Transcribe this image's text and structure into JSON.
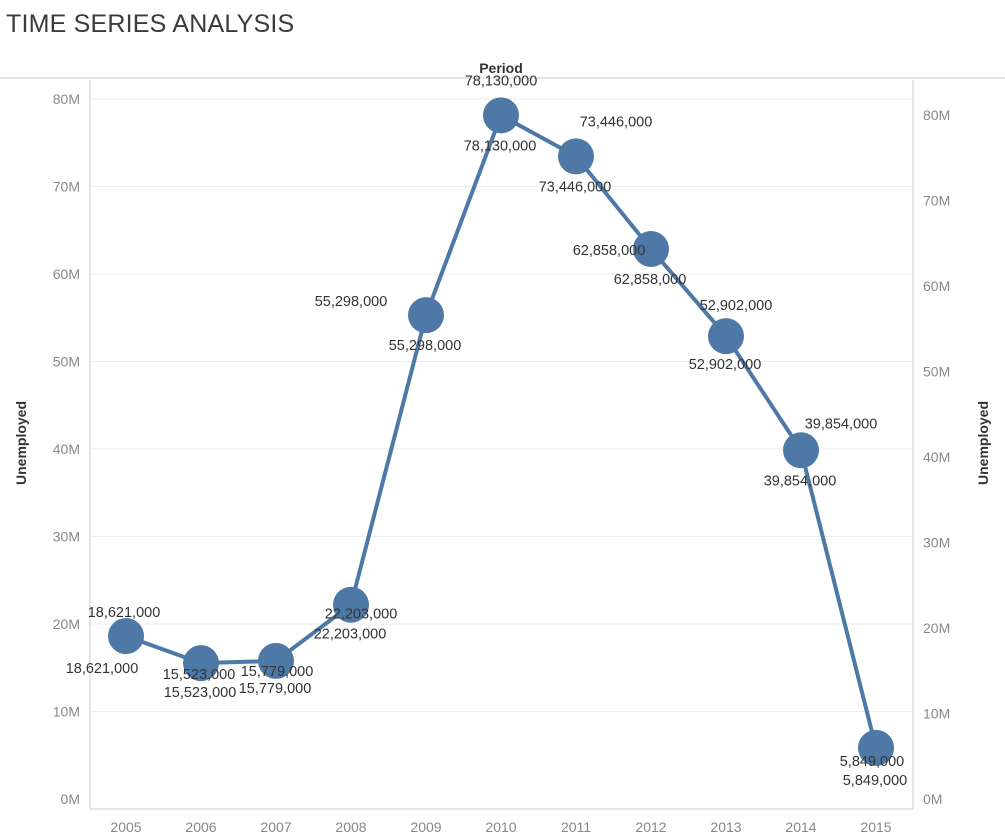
{
  "title": "TIME SERIES ANALYSIS",
  "colors": {
    "series": "#4e79a7",
    "grid": "#eeeeee",
    "axis": "#cccccc",
    "tick_text": "#888888",
    "label_text": "#333333"
  },
  "chart_data": {
    "type": "line",
    "title": "TIME SERIES ANALYSIS",
    "xlabel": "Period",
    "ylabel": "Unemployed",
    "ylabel_right": "Unemployed",
    "x": [
      "2005",
      "2006",
      "2007",
      "2008",
      "2009",
      "2010",
      "2011",
      "2012",
      "2013",
      "2014",
      "2015"
    ],
    "series": [
      {
        "values": [
          18621000,
          15523000,
          15779000,
          22203000,
          55298000,
          78130000,
          73446000,
          62858000,
          52902000,
          39854000,
          5849000
        ],
        "labels": [
          "18,621,000",
          "15,523,000",
          "15,779,000",
          "22,203,000",
          "55,298,000",
          "78,130,000",
          "73,446,000",
          "62,858,000",
          "52,902,000",
          "39,854,000",
          "5,849,000"
        ]
      }
    ],
    "ylim": [
      0,
      80000000
    ],
    "y_ticks": [
      0,
      10000000,
      20000000,
      30000000,
      40000000,
      50000000,
      60000000,
      70000000,
      80000000
    ],
    "y_tick_labels": [
      "0M",
      "10M",
      "20M",
      "30M",
      "40M",
      "50M",
      "60M",
      "70M",
      "80M"
    ],
    "dual_axis": true,
    "markers": "large-circle",
    "grid": true
  }
}
